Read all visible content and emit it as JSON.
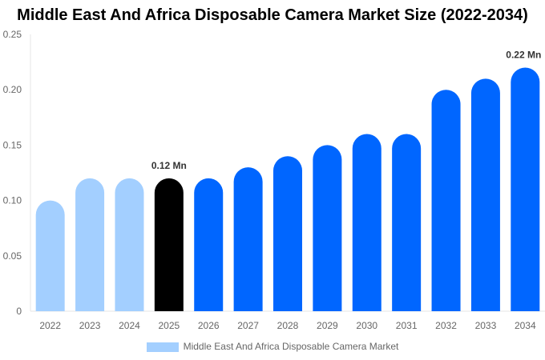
{
  "chart_data": {
    "type": "bar",
    "title": "Middle East And Africa Disposable Camera Market Size (2022-2034)",
    "categories": [
      "2022",
      "2023",
      "2024",
      "2025",
      "2026",
      "2027",
      "2028",
      "2029",
      "2030",
      "2031",
      "2032",
      "2033",
      "2034"
    ],
    "series": [
      {
        "name": "Middle East And Africa Disposable Camera Market",
        "values": [
          0.1,
          0.12,
          0.12,
          0.12,
          0.12,
          0.13,
          0.14,
          0.15,
          0.16,
          0.16,
          0.2,
          0.21,
          0.22
        ]
      }
    ],
    "bar_colors": [
      "#a3cfff",
      "#a3cfff",
      "#a3cfff",
      "#000000",
      "#0066ff",
      "#0066ff",
      "#0066ff",
      "#0066ff",
      "#0066ff",
      "#0066ff",
      "#0066ff",
      "#0066ff",
      "#0066ff"
    ],
    "yticks": [
      "0",
      "0.05",
      "0.10",
      "0.15",
      "0.20",
      "0.25"
    ],
    "ylim": [
      0,
      0.25
    ],
    "annotations": [
      {
        "category": "2025",
        "text": "0.12 Mn"
      },
      {
        "category": "2034",
        "text": "0.22 Mn"
      }
    ],
    "legend_position": "bottom",
    "grid": false
  }
}
